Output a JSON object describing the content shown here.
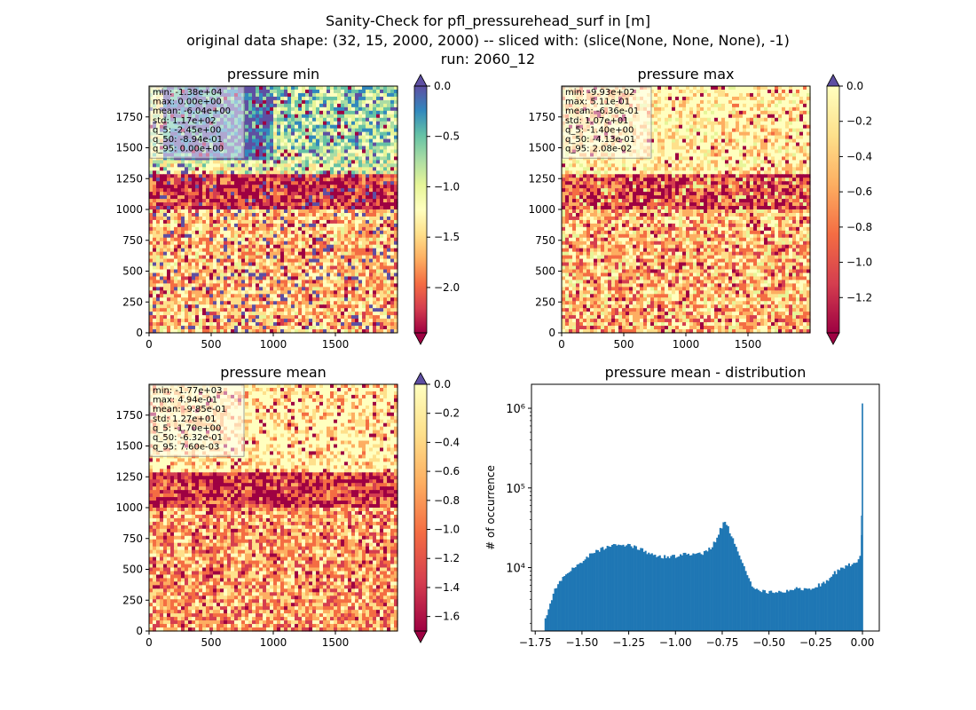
{
  "figure": {
    "suptitle_lines": [
      "Sanity-Check for pfl_pressurehead_surf in [m]",
      "original data shape: (32, 15, 2000, 2000) -- sliced with: (slice(None, None, None), -1)",
      "run: 2060_12"
    ]
  },
  "chart_data": [
    {
      "type": "heatmap",
      "title": "pressure min",
      "xlim": [
        0,
        2000
      ],
      "ylim": [
        0,
        2000
      ],
      "x_ticks": [
        0,
        500,
        1000,
        1500
      ],
      "y_ticks": [
        0,
        250,
        500,
        750,
        1000,
        1250,
        1500,
        1750
      ],
      "colormap": "Spectral",
      "colorbar": {
        "range": [
          -2.45,
          0.0
        ],
        "ticks": [
          "0.0",
          "−0.5",
          "−1.0",
          "−1.5",
          "−2.0"
        ],
        "tick_values": [
          0.0,
          -0.5,
          -1.0,
          -1.5,
          -2.0
        ],
        "extend": "both"
      },
      "stats": [
        "min: -1.38e+04",
        "max: 0.00e+00",
        "mean: -6.04e+00",
        "std: 1.17e+02",
        "q_5: -2.45e+00",
        "q_50: -8.94e-01",
        "q_95: 0.00e+00"
      ]
    },
    {
      "type": "heatmap",
      "title": "pressure max",
      "xlim": [
        0,
        2000
      ],
      "ylim": [
        0,
        2000
      ],
      "x_ticks": [
        0,
        500,
        1000,
        1500
      ],
      "y_ticks": [
        0,
        250,
        500,
        750,
        1000,
        1250,
        1500,
        1750
      ],
      "colormap": "Spectral",
      "colorbar": {
        "range": [
          -1.4,
          0.0
        ],
        "ticks": [
          "0.0",
          "−0.2",
          "−0.4",
          "−0.6",
          "−0.8",
          "−1.0",
          "−1.2"
        ],
        "tick_values": [
          0.0,
          -0.2,
          -0.4,
          -0.6,
          -0.8,
          -1.0,
          -1.2
        ],
        "extend": "both"
      },
      "stats": [
        "min: -9.93e+02",
        "max: 5.11e-01",
        "mean: -6.36e-01",
        "std: 1.07e+01",
        "q_5: -1.40e+00",
        "q_50: -4.13e-01",
        "q_95: 2.08e-02"
      ]
    },
    {
      "type": "heatmap",
      "title": "pressure mean",
      "xlim": [
        0,
        2000
      ],
      "ylim": [
        0,
        2000
      ],
      "x_ticks": [
        0,
        500,
        1000,
        1500
      ],
      "y_ticks": [
        0,
        250,
        500,
        750,
        1000,
        1250,
        1500,
        1750
      ],
      "colormap": "Spectral",
      "colorbar": {
        "range": [
          -1.7,
          0.0
        ],
        "ticks": [
          "0.0",
          "−0.2",
          "−0.4",
          "−0.6",
          "−0.8",
          "−1.0",
          "−1.2",
          "−1.4",
          "−1.6"
        ],
        "tick_values": [
          0.0,
          -0.2,
          -0.4,
          -0.6,
          -0.8,
          -1.0,
          -1.2,
          -1.4,
          -1.6
        ],
        "extend": "both"
      },
      "stats": [
        "min: -1.77e+03",
        "max: 4.94e-01",
        "mean: -9.85e-01",
        "std: 1.27e+01",
        "q_5: -1.70e+00",
        "q_50: -6.32e-01",
        "q_95: 7.60e-03"
      ]
    },
    {
      "type": "bar",
      "title": "pressure mean - distribution",
      "xlabel": "",
      "ylabel": "# of occurrence",
      "xlim": [
        -1.77,
        0.09
      ],
      "yscale": "log",
      "ylim": [
        1600,
        2000000
      ],
      "x_ticks": [
        -1.75,
        -1.5,
        -1.25,
        -1.0,
        -0.75,
        -0.5,
        -0.25,
        0.0
      ],
      "x_tick_labels": [
        "−1.75",
        "−1.50",
        "−1.25",
        "−1.00",
        "−0.75",
        "−0.50",
        "−0.25",
        "0.00"
      ],
      "y_ticks": [
        10000,
        100000,
        1000000
      ],
      "y_tick_labels": [
        "10⁴",
        "10⁵",
        "10⁶"
      ],
      "color": "#1f77b4",
      "bin_width": 0.0085,
      "profile_x": [
        -1.7,
        -1.69,
        -1.67,
        -1.65,
        -1.62,
        -1.6,
        -1.55,
        -1.5,
        -1.45,
        -1.4,
        -1.35,
        -1.3,
        -1.25,
        -1.2,
        -1.15,
        -1.1,
        -1.05,
        -1.0,
        -0.95,
        -0.9,
        -0.85,
        -0.82,
        -0.79,
        -0.76,
        -0.74,
        -0.72,
        -0.7,
        -0.68,
        -0.66,
        -0.64,
        -0.62,
        -0.6,
        -0.58,
        -0.56,
        -0.54,
        -0.5,
        -0.45,
        -0.4,
        -0.35,
        -0.3,
        -0.25,
        -0.2,
        -0.15,
        -0.1,
        -0.05,
        -0.02,
        -0.01,
        -0.005,
        -0.002,
        0.0
      ],
      "profile_y": [
        2000,
        2500,
        3500,
        5000,
        6500,
        7500,
        9500,
        12000,
        15000,
        17000,
        19000,
        19500,
        19000,
        17500,
        15500,
        14000,
        13500,
        14000,
        15000,
        14500,
        15000,
        17000,
        21000,
        30000,
        38000,
        33000,
        25000,
        19000,
        15000,
        11000,
        8000,
        6500,
        5500,
        5200,
        5000,
        5000,
        5000,
        5200,
        5500,
        5400,
        5800,
        6500,
        8500,
        10000,
        11500,
        12500,
        14000,
        20000,
        45000,
        1150000
      ]
    }
  ]
}
